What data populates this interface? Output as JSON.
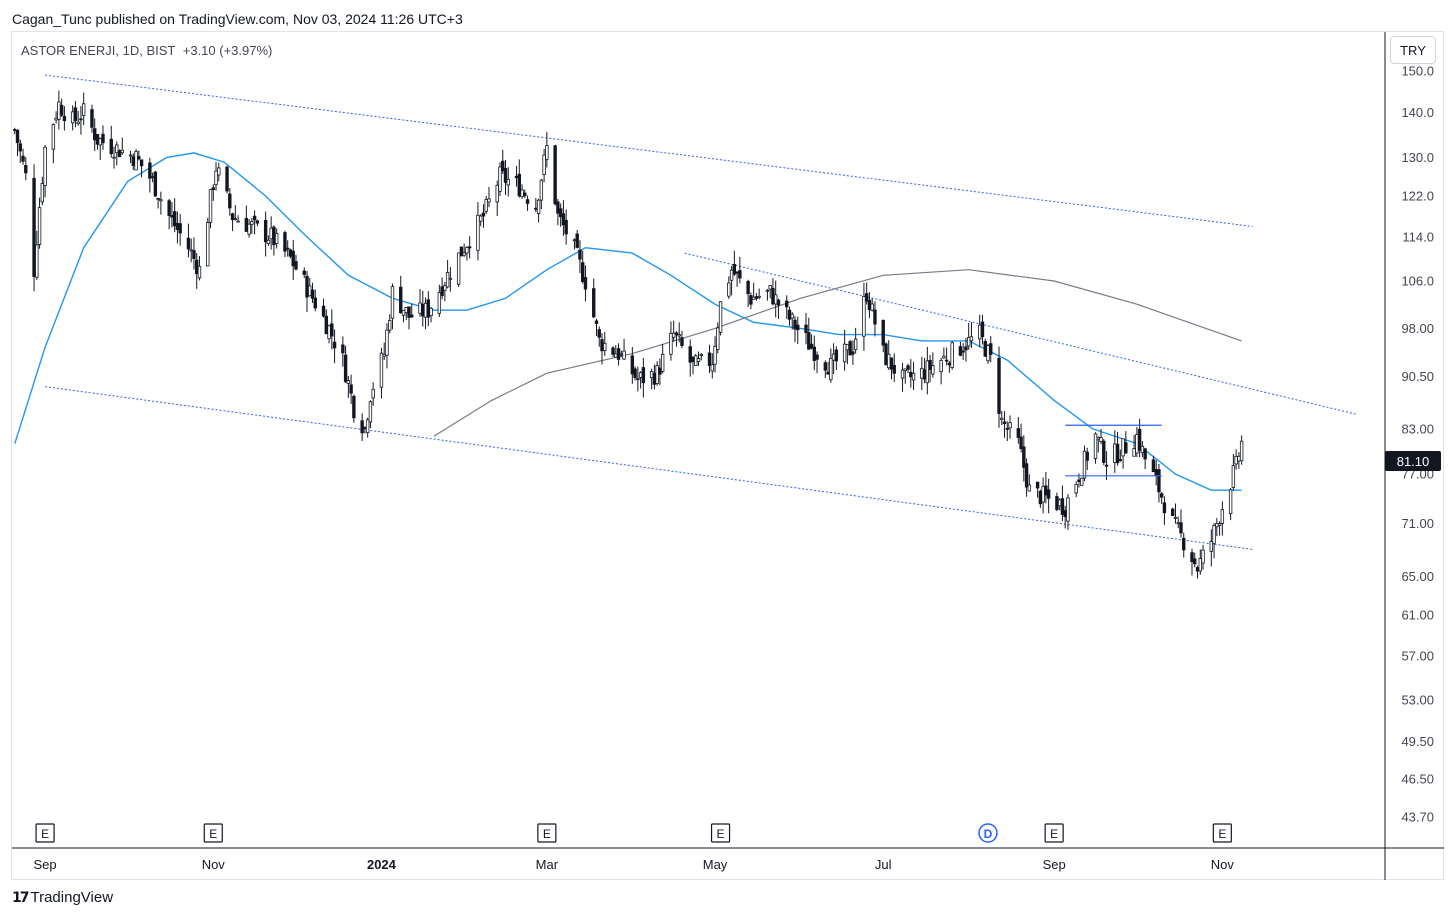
{
  "header": {
    "published_line": "Cagan_Tunc published on TradingView.com, Nov 03, 2024 11:26 UTC+3"
  },
  "legend": {
    "symbol": "ASTOR ENERJI, 1D, BIST",
    "change": "+3.10 (+3.97%)"
  },
  "currency_button": "TRY",
  "last_price_label": "81.10",
  "footer": {
    "brand": "TradingView"
  },
  "colors": {
    "candle": "#131722",
    "ma_blue": "#2196f3",
    "ma_gray": "#787b86",
    "channel": "#2962ff",
    "dividend": "#2962ff",
    "earnings_border": "#131722",
    "last_price_bg": "#131722"
  },
  "chart_data": {
    "type": "candlestick",
    "symbol": "ASTOR ENERJI",
    "interval": "1D",
    "exchange": "BIST",
    "y_scale": "log",
    "ylim": [
      41.5,
      160
    ],
    "y_ticks": [
      "150.0",
      "140.0",
      "130.0",
      "122.0",
      "114.0",
      "106.0",
      "98.00",
      "90.50",
      "83.00",
      "77.00",
      "71.00",
      "65.00",
      "61.00",
      "57.00",
      "53.00",
      "49.50",
      "46.50",
      "43.70"
    ],
    "x_ticks": [
      {
        "label": "Sep",
        "date": "2023-09-01",
        "bold": false
      },
      {
        "label": "Nov",
        "date": "2023-11-01",
        "bold": false
      },
      {
        "label": "2024",
        "date": "2024-01-01",
        "bold": true
      },
      {
        "label": "Mar",
        "date": "2024-03-01",
        "bold": false
      },
      {
        "label": "May",
        "date": "2024-05-01",
        "bold": false
      },
      {
        "label": "Jul",
        "date": "2024-07-01",
        "bold": false
      },
      {
        "label": "Sep",
        "date": "2024-09-01",
        "bold": false
      },
      {
        "label": "Nov",
        "date": "2024-11-01",
        "bold": false
      }
    ],
    "xlim": [
      "2023-08-20",
      "2024-12-30"
    ],
    "price_path": [
      [
        "2023-08-21",
        136
      ],
      [
        "2023-08-25",
        126
      ],
      [
        "2023-08-28",
        108
      ],
      [
        "2023-09-01",
        132
      ],
      [
        "2023-09-06",
        142
      ],
      [
        "2023-09-11",
        138
      ],
      [
        "2023-09-15",
        140
      ],
      [
        "2023-09-20",
        134
      ],
      [
        "2023-09-27",
        132
      ],
      [
        "2023-10-04",
        130
      ],
      [
        "2023-10-10",
        125
      ],
      [
        "2023-10-16",
        118
      ],
      [
        "2023-10-23",
        112
      ],
      [
        "2023-10-27",
        108
      ],
      [
        "2023-11-02",
        128
      ],
      [
        "2023-11-08",
        118
      ],
      [
        "2023-11-15",
        116
      ],
      [
        "2023-11-22",
        114
      ],
      [
        "2023-11-29",
        110
      ],
      [
        "2023-12-06",
        104
      ],
      [
        "2023-12-13",
        98
      ],
      [
        "2023-12-18",
        93
      ],
      [
        "2023-12-22",
        86
      ],
      [
        "2023-12-26",
        83
      ],
      [
        "2023-12-28",
        88
      ],
      [
        "2024-01-02",
        94
      ],
      [
        "2024-01-05",
        104
      ],
      [
        "2024-01-11",
        100
      ],
      [
        "2024-01-18",
        101
      ],
      [
        "2024-01-25",
        107
      ],
      [
        "2024-02-01",
        113
      ],
      [
        "2024-02-07",
        118
      ],
      [
        "2024-02-13",
        126
      ],
      [
        "2024-02-20",
        124
      ],
      [
        "2024-02-26",
        120
      ],
      [
        "2024-03-01",
        132
      ],
      [
        "2024-03-05",
        118
      ],
      [
        "2024-03-10",
        113
      ],
      [
        "2024-03-15",
        106
      ],
      [
        "2024-03-20",
        96
      ],
      [
        "2024-03-27",
        94
      ],
      [
        "2024-04-03",
        90
      ],
      [
        "2024-04-10",
        91
      ],
      [
        "2024-04-16",
        97
      ],
      [
        "2024-04-23",
        92
      ],
      [
        "2024-04-30",
        93
      ],
      [
        "2024-05-03",
        102
      ],
      [
        "2024-05-07",
        108
      ],
      [
        "2024-05-14",
        103
      ],
      [
        "2024-05-21",
        104
      ],
      [
        "2024-05-29",
        99
      ],
      [
        "2024-06-05",
        95
      ],
      [
        "2024-06-12",
        92
      ],
      [
        "2024-06-20",
        95
      ],
      [
        "2024-06-25",
        104
      ],
      [
        "2024-07-01",
        94
      ],
      [
        "2024-07-08",
        90
      ],
      [
        "2024-07-15",
        91
      ],
      [
        "2024-07-22",
        93
      ],
      [
        "2024-07-29",
        95
      ],
      [
        "2024-08-05",
        97
      ],
      [
        "2024-08-09",
        93
      ],
      [
        "2024-08-13",
        84
      ],
      [
        "2024-08-19",
        81
      ],
      [
        "2024-08-23",
        75
      ],
      [
        "2024-08-29",
        74
      ],
      [
        "2024-09-05",
        73
      ],
      [
        "2024-09-10",
        77
      ],
      [
        "2024-09-16",
        82
      ],
      [
        "2024-09-20",
        79
      ],
      [
        "2024-09-25",
        80
      ],
      [
        "2024-10-01",
        82
      ],
      [
        "2024-10-04",
        79
      ],
      [
        "2024-10-08",
        76
      ],
      [
        "2024-10-14",
        71
      ],
      [
        "2024-10-18",
        69
      ],
      [
        "2024-10-23",
        66
      ],
      [
        "2024-10-28",
        69
      ],
      [
        "2024-11-01",
        73
      ],
      [
        "2024-11-06",
        78
      ],
      [
        "2024-11-08",
        81.1
      ]
    ],
    "ma_50": [
      [
        "2023-08-21",
        81
      ],
      [
        "2023-09-01",
        95
      ],
      [
        "2023-09-15",
        112
      ],
      [
        "2023-10-01",
        125
      ],
      [
        "2023-10-15",
        130
      ],
      [
        "2023-10-25",
        131
      ],
      [
        "2023-11-05",
        129
      ],
      [
        "2023-11-20",
        122
      ],
      [
        "2023-12-05",
        114
      ],
      [
        "2023-12-20",
        107
      ],
      [
        "2024-01-05",
        103
      ],
      [
        "2024-01-20",
        101
      ],
      [
        "2024-02-01",
        101
      ],
      [
        "2024-02-15",
        103
      ],
      [
        "2024-03-01",
        108
      ],
      [
        "2024-03-15",
        112
      ],
      [
        "2024-04-01",
        111
      ],
      [
        "2024-04-15",
        107
      ],
      [
        "2024-05-01",
        102
      ],
      [
        "2024-05-15",
        99
      ],
      [
        "2024-06-01",
        98
      ],
      [
        "2024-06-15",
        97
      ],
      [
        "2024-07-01",
        97
      ],
      [
        "2024-07-15",
        96
      ],
      [
        "2024-08-01",
        96
      ],
      [
        "2024-08-15",
        93
      ],
      [
        "2024-09-01",
        87
      ],
      [
        "2024-09-15",
        83
      ],
      [
        "2024-10-01",
        81
      ],
      [
        "2024-10-15",
        77
      ],
      [
        "2024-10-28",
        75
      ],
      [
        "2024-11-08",
        75
      ]
    ],
    "ma_200": [
      [
        "2024-01-20",
        82
      ],
      [
        "2024-02-10",
        87
      ],
      [
        "2024-03-01",
        91
      ],
      [
        "2024-04-01",
        94
      ],
      [
        "2024-05-01",
        98
      ],
      [
        "2024-06-01",
        103
      ],
      [
        "2024-07-01",
        107
      ],
      [
        "2024-08-01",
        108
      ],
      [
        "2024-09-01",
        106
      ],
      [
        "2024-10-01",
        102
      ],
      [
        "2024-11-08",
        96
      ]
    ],
    "channel_upper": [
      [
        "2023-09-01",
        149
      ],
      [
        "2024-11-12",
        116
      ]
    ],
    "channel_lower": [
      [
        "2023-09-01",
        89
      ],
      [
        "2024-11-12",
        68
      ]
    ],
    "channel_mid": [
      [
        "2024-04-20",
        111
      ],
      [
        "2024-12-20",
        85
      ]
    ],
    "box_lines": [
      {
        "from": "2024-09-05",
        "to": "2024-10-10",
        "y": 83.5
      },
      {
        "from": "2024-09-05",
        "to": "2024-10-10",
        "y": 76.8
      }
    ],
    "event_markers": [
      {
        "date": "2023-09-01",
        "label": "E"
      },
      {
        "date": "2023-11-01",
        "label": "E"
      },
      {
        "date": "2024-03-01",
        "label": "E"
      },
      {
        "date": "2024-05-03",
        "label": "E"
      },
      {
        "date": "2024-08-08",
        "label": "D"
      },
      {
        "date": "2024-09-01",
        "label": "E"
      },
      {
        "date": "2024-11-01",
        "label": "E"
      }
    ],
    "last_price": 81.1
  }
}
